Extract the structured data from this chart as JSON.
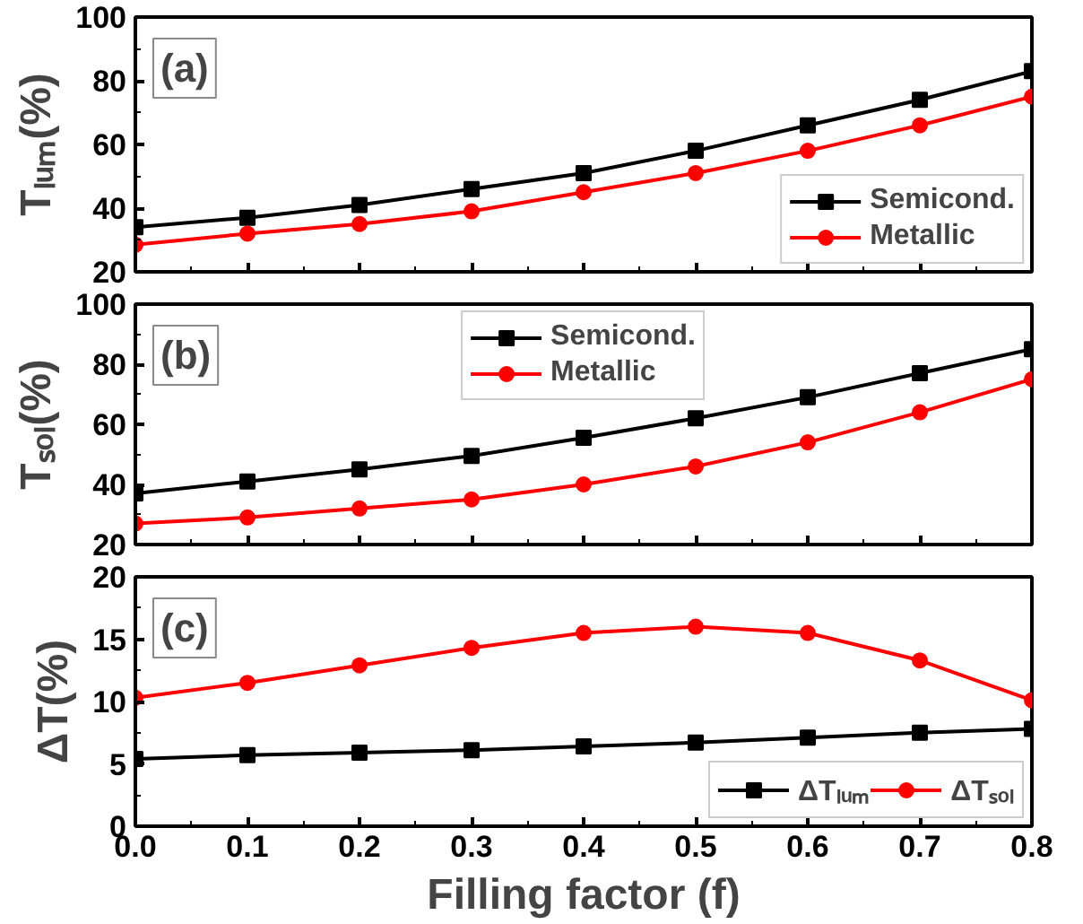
{
  "chart_data": [
    {
      "type": "line",
      "ylabel": "Tₗᵤₘ(%)",
      "annotations": [
        "(a)"
      ],
      "x": [
        0,
        0.1,
        0.2,
        0.3,
        0.4,
        0.5,
        0.6,
        0.7,
        0.8
      ],
      "xlim": [
        0,
        0.8
      ],
      "xticks": [
        0,
        0.1,
        0.2,
        0.3,
        0.4,
        0.5,
        0.6,
        0.7,
        0.8
      ],
      "ylim": [
        20,
        100
      ],
      "yticks": [
        20,
        40,
        60,
        80,
        100
      ],
      "tick_labels": "y",
      "legend": "bottom right",
      "grid": false,
      "series": [
        {
          "name": "Semicond.",
          "color": "#000000",
          "marker": "square",
          "values": [
            34,
            37,
            41,
            46,
            51,
            58,
            66,
            74,
            83
          ]
        },
        {
          "name": "Metallic",
          "color": "#ff0000",
          "marker": "circle",
          "values": [
            28.5,
            32,
            35,
            39,
            45,
            51,
            58,
            66,
            75
          ]
        }
      ]
    },
    {
      "type": "line",
      "ylabel": "Tₛₒₗ(%)",
      "annotations": [
        "(b)"
      ],
      "x": [
        0,
        0.1,
        0.2,
        0.3,
        0.4,
        0.5,
        0.6,
        0.7,
        0.8
      ],
      "xlim": [
        0,
        0.8
      ],
      "xticks": [
        0,
        0.1,
        0.2,
        0.3,
        0.4,
        0.5,
        0.6,
        0.7,
        0.8
      ],
      "ylim": [
        20,
        100
      ],
      "yticks": [
        20,
        40,
        60,
        80,
        100
      ],
      "tick_labels": "y",
      "legend": "top",
      "grid": false,
      "series": [
        {
          "name": "Semicond.",
          "color": "#000000",
          "marker": "square",
          "values": [
            37,
            41,
            45,
            49.5,
            55.5,
            62,
            69,
            77,
            85
          ]
        },
        {
          "name": "Metallic",
          "color": "#ff0000",
          "marker": "circle",
          "values": [
            27,
            29,
            32,
            35,
            40,
            46,
            54,
            64,
            75
          ]
        }
      ]
    },
    {
      "type": "line",
      "ylabel": "ΔT(%)",
      "xlabel": "Filling factor (f)",
      "annotations": [
        "(c)"
      ],
      "x": [
        0,
        0.1,
        0.2,
        0.3,
        0.4,
        0.5,
        0.6,
        0.7,
        0.8
      ],
      "xlim": [
        0,
        0.8
      ],
      "xticks": [
        {
          "value": 0,
          "label": "0.0"
        },
        0.1,
        0.2,
        0.3,
        0.4,
        0.5,
        0.6,
        0.7,
        0.8
      ],
      "ylim": [
        0,
        20
      ],
      "yticks": [
        0,
        5,
        10,
        15,
        20
      ],
      "legend": "bottom right",
      "grid": false,
      "series": [
        {
          "name": "ΔTₗᵤₘ",
          "color": "#000000",
          "marker": "square",
          "values": [
            5.4,
            5.7,
            5.9,
            6.1,
            6.4,
            6.7,
            7.1,
            7.5,
            7.8
          ]
        },
        {
          "name": "ΔTₛₒₗ",
          "color": "#ff0000",
          "marker": "circle",
          "values": [
            10.3,
            11.5,
            12.9,
            14.3,
            15.5,
            16,
            15.5,
            13.3,
            10.1
          ]
        }
      ]
    }
  ]
}
